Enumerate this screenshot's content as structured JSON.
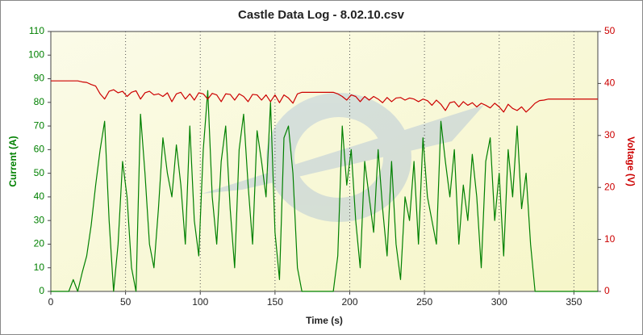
{
  "chart_data": {
    "type": "line",
    "title": "Castle Data Log - 8.02.10.csv",
    "x_label": "Time (s)",
    "y_label": "Current (A)",
    "y2_label": "Voltage (V)",
    "xlim": [
      0,
      366
    ],
    "xticks": [
      0,
      50,
      100,
      150,
      200,
      250,
      300,
      350
    ],
    "ylim": [
      0,
      110
    ],
    "yticks": [
      0,
      10,
      20,
      30,
      40,
      50,
      60,
      70,
      80,
      90,
      100,
      110
    ],
    "y2lim": [
      0,
      50
    ],
    "y2ticks": [
      0,
      10,
      20,
      30,
      40,
      50
    ],
    "grid": true,
    "x": [
      0,
      3,
      6,
      9,
      12,
      15,
      18,
      21,
      24,
      27,
      30,
      33,
      36,
      39,
      42,
      45,
      48,
      51,
      54,
      57,
      60,
      63,
      66,
      69,
      72,
      75,
      78,
      81,
      84,
      87,
      90,
      93,
      96,
      99,
      102,
      105,
      108,
      111,
      114,
      117,
      120,
      123,
      126,
      129,
      132,
      135,
      138,
      141,
      144,
      147,
      150,
      153,
      156,
      159,
      162,
      165,
      168,
      171,
      174,
      177,
      180,
      183,
      186,
      189,
      192,
      195,
      198,
      201,
      204,
      207,
      210,
      213,
      216,
      219,
      222,
      225,
      228,
      231,
      234,
      237,
      240,
      243,
      246,
      249,
      252,
      255,
      258,
      261,
      264,
      267,
      270,
      273,
      276,
      279,
      282,
      285,
      288,
      291,
      294,
      297,
      300,
      303,
      306,
      309,
      312,
      315,
      318,
      321,
      324,
      327,
      330,
      333,
      336,
      339,
      342,
      345,
      348,
      351,
      354,
      357,
      360,
      363,
      366
    ],
    "series": [
      {
        "name": "Current (A)",
        "color": "#008000",
        "axis": "y",
        "values": [
          0,
          0,
          0,
          0,
          0,
          5,
          0,
          8,
          15,
          28,
          45,
          60,
          72,
          30,
          0,
          20,
          55,
          40,
          10,
          0,
          75,
          50,
          20,
          10,
          35,
          65,
          50,
          40,
          62,
          45,
          20,
          70,
          30,
          15,
          60,
          85,
          40,
          20,
          55,
          70,
          35,
          10,
          60,
          75,
          45,
          20,
          68,
          55,
          40,
          80,
          25,
          5,
          65,
          70,
          50,
          10,
          0,
          0,
          0,
          0,
          0,
          0,
          0,
          0,
          15,
          70,
          45,
          60,
          30,
          10,
          55,
          40,
          25,
          60,
          35,
          15,
          55,
          20,
          5,
          40,
          30,
          55,
          20,
          65,
          40,
          30,
          20,
          72,
          55,
          40,
          60,
          20,
          45,
          30,
          58,
          40,
          10,
          55,
          65,
          30,
          50,
          15,
          60,
          40,
          70,
          35,
          50,
          20,
          0,
          0,
          0,
          0,
          0,
          0,
          0,
          0,
          0,
          0,
          0,
          0,
          0,
          0,
          0
        ]
      },
      {
        "name": "Voltage (V)",
        "color": "#cc0000",
        "axis": "y2",
        "values": [
          40.5,
          40.5,
          40.5,
          40.5,
          40.5,
          40.5,
          40.5,
          40.3,
          40.2,
          39.8,
          39.5,
          38,
          37,
          38.5,
          38.8,
          38.2,
          38.5,
          37.5,
          38.3,
          38.6,
          37,
          38.2,
          38.5,
          37.8,
          38,
          37.5,
          38.2,
          36.5,
          38,
          38.3,
          37,
          38,
          36.8,
          38.2,
          38,
          37,
          38.1,
          37.8,
          36.5,
          38,
          37.9,
          36.8,
          38,
          37.5,
          36.5,
          37.9,
          37.8,
          36.8,
          37.8,
          36.5,
          37.8,
          36.3,
          37.8,
          37.2,
          36.2,
          38,
          38.3,
          38.3,
          38.3,
          38.3,
          38.3,
          38.3,
          38.3,
          38.3,
          38,
          37.5,
          36.8,
          37.8,
          37.5,
          36.5,
          37.5,
          36.8,
          37.5,
          37,
          36.3,
          37.3,
          36.5,
          37.2,
          37.3,
          36.8,
          37.2,
          37,
          36.5,
          37,
          36.7,
          35.8,
          36.8,
          36,
          34.8,
          36.3,
          36.5,
          35.5,
          36.5,
          35.8,
          36.3,
          35.5,
          36.2,
          35.8,
          35.3,
          36.2,
          35.5,
          34.5,
          36,
          35.2,
          34.8,
          35.5,
          34.5,
          35.3,
          36.2,
          36.7,
          36.8,
          37,
          37,
          37,
          37,
          37,
          37,
          37,
          37,
          37,
          37,
          37,
          37
        ]
      }
    ]
  }
}
